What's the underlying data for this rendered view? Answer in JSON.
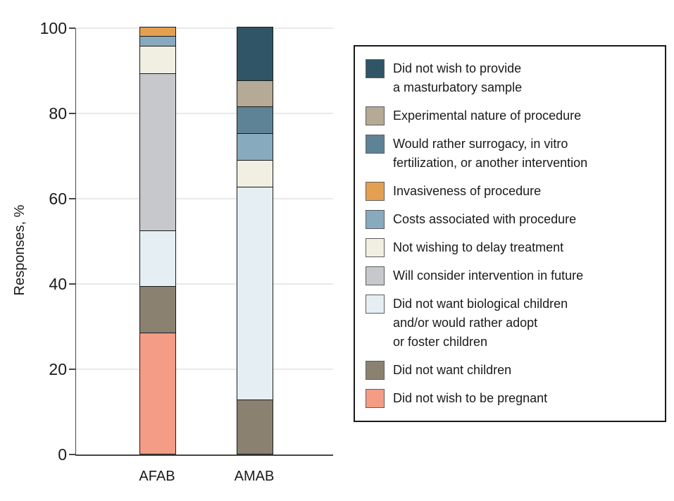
{
  "chart_data": {
    "type": "bar",
    "subtype": "stacked-percentage",
    "title": "",
    "xlabel": "",
    "ylabel": "Responses, %",
    "ylim": [
      0,
      100
    ],
    "yticks": [
      0,
      20,
      40,
      60,
      80,
      100
    ],
    "grid": "horizontal",
    "legend_position": "right",
    "categories": [
      "AFAB",
      "AMAB"
    ],
    "series": [
      {
        "name": "Did not wish to provide a masturbatory sample",
        "label_lines": [
          "Did not wish to provide",
          "a masturbatory sample"
        ],
        "color": "#2F5566",
        "values": [
          0,
          12.5
        ]
      },
      {
        "name": "Experimental nature of procedure",
        "label_lines": [
          "Experimental nature of procedure"
        ],
        "color": "#B5AA95",
        "values": [
          0,
          6.25
        ]
      },
      {
        "name": "Would rather surrogacy, in vitro fertilization, or another intervention",
        "label_lines": [
          "Would rather surrogacy, in vitro",
          "fertilization, or another intervention"
        ],
        "color": "#5E8397",
        "values": [
          0,
          6.25
        ]
      },
      {
        "name": "Invasiveness of procedure",
        "label_lines": [
          "Invasiveness of procedure"
        ],
        "color": "#E4A051",
        "values": [
          2.2,
          0
        ]
      },
      {
        "name": "Costs associated with procedure",
        "label_lines": [
          "Costs associated with procedure"
        ],
        "color": "#88AABE",
        "values": [
          2.2,
          6.25
        ]
      },
      {
        "name": "Not wishing to delay treatment",
        "label_lines": [
          "Not wishing to delay treatment"
        ],
        "color": "#F0EFE2",
        "values": [
          6.5,
          6.25
        ]
      },
      {
        "name": "Will consider intervention in future",
        "label_lines": [
          "Will consider intervention in future"
        ],
        "color": "#C7C8CB",
        "values": [
          36.9,
          0
        ]
      },
      {
        "name": "Did not want biological children and/or would rather adopt or foster children",
        "label_lines": [
          "Did not want biological children",
          "and/or would rather adopt",
          "or foster children"
        ],
        "color": "#E5EEF3",
        "values": [
          13.0,
          50.0
        ]
      },
      {
        "name": "Did not want children",
        "label_lines": [
          "Did not want children"
        ],
        "color": "#8A8171",
        "values": [
          10.9,
          12.5
        ]
      },
      {
        "name": "Did not wish to be pregnant",
        "label_lines": [
          "Did not wish to be pregnant"
        ],
        "color": "#F49C86",
        "values": [
          28.3,
          0
        ]
      }
    ]
  }
}
